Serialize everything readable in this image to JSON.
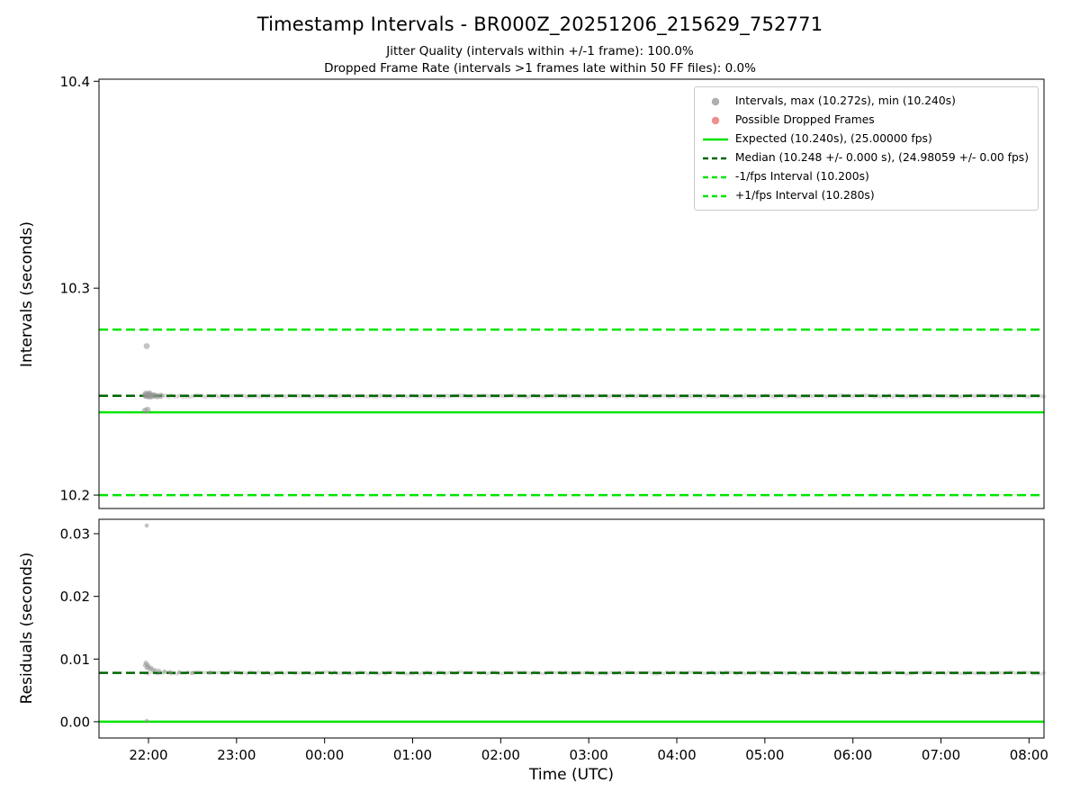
{
  "figure": {
    "title": "Timestamp Intervals - BR000Z_20251206_215629_752771",
    "subtitle1": "Jitter Quality (intervals within +/-1 frame): 100.0%",
    "subtitle2": "Dropped Frame Rate (intervals >1 frames late within 50 FF files): 0.0%",
    "xlabel": "Time (UTC)"
  },
  "colors": {
    "expected": "#00e400",
    "median": "#006400",
    "scatter": "#949494",
    "dropped": "#e96a6a",
    "axis": "#000000"
  },
  "chart_data": [
    {
      "type": "scatter",
      "ylabel": "Intervals (seconds)",
      "ylim": [
        10.1935,
        10.401
      ],
      "yticks": [
        10.2,
        10.3,
        10.4
      ],
      "ytick_labels": [
        "10.2",
        "10.3",
        "10.4"
      ],
      "xlim_hours": [
        -0.562,
        10.17
      ],
      "xtick_hours": [
        0,
        1,
        2,
        3,
        4,
        5,
        6,
        7,
        8,
        9,
        10
      ],
      "xtick_labels": [
        "22:00",
        "23:00",
        "00:00",
        "01:00",
        "02:00",
        "03:00",
        "04:00",
        "05:00",
        "06:00",
        "07:00",
        "08:00"
      ],
      "hlines": [
        {
          "name": "plus-1fps-interval",
          "y": 10.28,
          "style": "dashed",
          "color_key": "expected",
          "width": 2.5
        },
        {
          "name": "minus-1fps-interval",
          "y": 10.2,
          "style": "dashed",
          "color_key": "expected",
          "width": 2.5
        },
        {
          "name": "expected-interval",
          "y": 10.24,
          "style": "solid",
          "color_key": "expected",
          "width": 2.5
        },
        {
          "name": "median-interval",
          "y": 10.248,
          "style": "dashed",
          "color_key": "median",
          "width": 2.5
        }
      ],
      "band": {
        "x_start": -0.03,
        "x_end": 10.17,
        "y": 10.2478,
        "jitter": 0.00035,
        "count": 320,
        "radius": 2.4,
        "opacity": 0.3
      },
      "points": [
        [
          -0.02,
          10.272
        ],
        [
          -0.04,
          10.2408
        ],
        [
          -0.01,
          10.2412
        ],
        [
          -0.04,
          10.2482
        ],
        [
          -0.03,
          10.249
        ],
        [
          -0.02,
          10.2478
        ],
        [
          -0.01,
          10.2486
        ],
        [
          0.0,
          10.248
        ],
        [
          0.01,
          10.2492
        ],
        [
          0.02,
          10.2475
        ],
        [
          0.03,
          10.2484
        ],
        [
          0.05,
          10.2479
        ],
        [
          0.07,
          10.2482
        ],
        [
          0.1,
          10.2477
        ],
        [
          0.14,
          10.248
        ]
      ],
      "point_radius": 3.4,
      "point_opacity": 0.55,
      "legend": [
        {
          "marker": "dot",
          "color_key": "scatter",
          "label": "Intervals, max (10.272s), min (10.240s)"
        },
        {
          "marker": "dot",
          "color_key": "dropped",
          "label": "Possible Dropped Frames"
        },
        {
          "marker": "line_solid",
          "color_key": "expected",
          "label": "Expected (10.240s), (25.00000 fps)"
        },
        {
          "marker": "line_dashed",
          "color_key": "median",
          "label": "Median (10.248 +/- 0.000 s), (24.98059 +/- 0.00 fps)"
        },
        {
          "marker": "line_dashed",
          "color_key": "expected",
          "label": "-1/fps Interval (10.200s)"
        },
        {
          "marker": "line_dashed",
          "color_key": "expected",
          "label": "+1/fps Interval (10.280s)"
        }
      ]
    },
    {
      "type": "scatter",
      "ylabel": "Residuals (seconds)",
      "ylim": [
        -0.0026,
        0.0323
      ],
      "yticks": [
        0.0,
        0.01,
        0.02,
        0.03
      ],
      "ytick_labels": [
        "0.00",
        "0.01",
        "0.02",
        "0.03"
      ],
      "xlim_hours": [
        -0.562,
        10.17
      ],
      "xtick_hours": [
        0,
        1,
        2,
        3,
        4,
        5,
        6,
        7,
        8,
        9,
        10
      ],
      "xtick_labels": [
        "22:00",
        "23:00",
        "00:00",
        "01:00",
        "02:00",
        "03:00",
        "04:00",
        "05:00",
        "06:00",
        "07:00",
        "08:00"
      ],
      "hlines": [
        {
          "name": "expected-residual",
          "y": 0.0,
          "style": "solid",
          "color_key": "expected",
          "width": 2.5
        },
        {
          "name": "median-residual",
          "y": 0.0078,
          "style": "dashed",
          "color_key": "median",
          "width": 2.5
        }
      ],
      "band": {
        "x_start": -0.03,
        "x_end": 10.17,
        "y": 0.0078,
        "jitter": 0.00018,
        "count": 320,
        "radius": 2.0,
        "opacity": 0.3
      },
      "points": [
        [
          -0.02,
          0.0313
        ],
        [
          -0.02,
          0.0001
        ],
        [
          -0.04,
          0.009
        ],
        [
          -0.03,
          0.0094
        ],
        [
          -0.02,
          0.0086
        ],
        [
          -0.01,
          0.0091
        ],
        [
          0.0,
          0.0088
        ],
        [
          0.01,
          0.0084
        ],
        [
          0.03,
          0.0086
        ],
        [
          0.05,
          0.0083
        ],
        [
          0.08,
          0.0082
        ],
        [
          0.12,
          0.0081
        ],
        [
          0.18,
          0.008
        ],
        [
          0.25,
          0.0079
        ],
        [
          0.35,
          0.00785
        ],
        [
          0.5,
          0.0078
        ],
        [
          0.7,
          0.0078
        ]
      ],
      "point_radius": 2.4,
      "point_opacity": 0.55,
      "legend": []
    }
  ]
}
